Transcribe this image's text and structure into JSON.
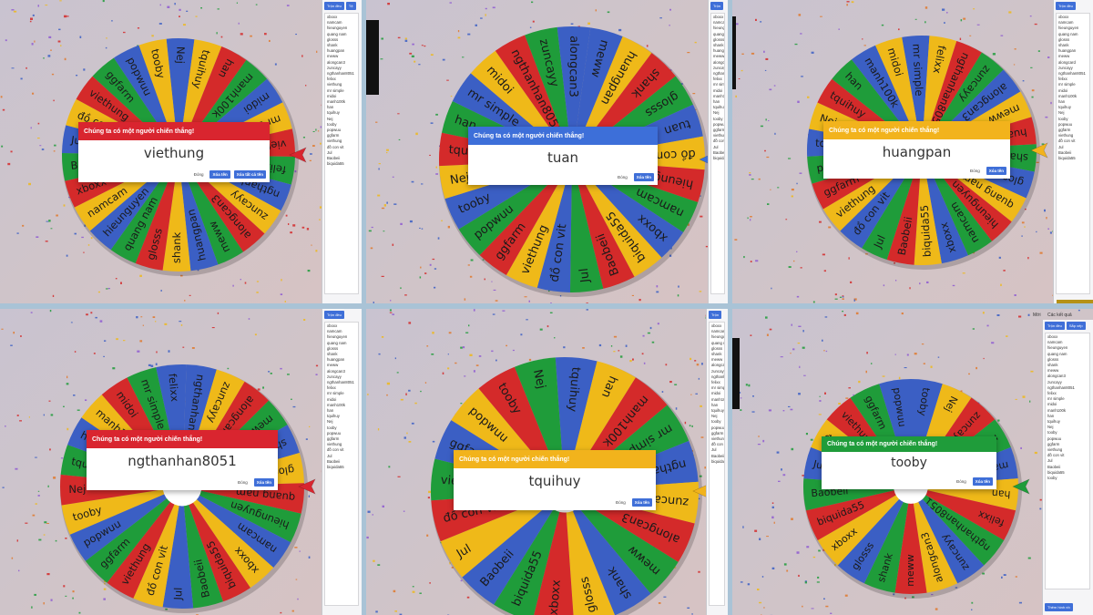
{
  "colors": {
    "red": "#d42a2a",
    "blue": "#3b5fc4",
    "yellow": "#efb919",
    "green": "#1f9c3a",
    "dialog_button": "#3f6fd8",
    "pointer": "#c0392b"
  },
  "panels": [
    {
      "header_color": "#d9252f",
      "dialog": {
        "title": "Chúng ta có một người chiến thắng!",
        "winner": "viethung",
        "close_label": "Đóng",
        "remove_label": "Xóa tên",
        "remove_all_label": "Xóa tất cả tên"
      },
      "sidebar": {
        "button1": "Trộn đều",
        "button2": "Tệ",
        "entries": [
          "xboxx",
          "namcam",
          "hieunguyen",
          "quang nam",
          "glosss",
          "shank",
          "huangpan",
          "meww",
          "alongcan3",
          "zuncayy",
          "ngthanhan8051",
          "felixx",
          "viethung",
          "mr simple",
          "midoi",
          "manh100k",
          "han",
          "tquihuy",
          "Nej",
          "tooby",
          "popwuu",
          "ggfarm",
          "viethung",
          "đồ con vit",
          "Jul",
          "Baobeii",
          "biquida55"
        ]
      },
      "wheel_labels": [
        "Nej",
        "tquihuy",
        "han",
        "manh100k",
        "midoi",
        "mr simple",
        "viethung",
        "felixx",
        "ngthanhan8051",
        "zuncayy",
        "alongcan3",
        "meww",
        "huangpan",
        "shank",
        "glosss",
        "quang nam",
        "hieunguyen",
        "namcam",
        "xboxx",
        "Baobeii",
        "Jul",
        "đồ con vit",
        "viethung",
        "ggfarm",
        "popwuu",
        "tooby"
      ]
    },
    {
      "header_color": "#3d6fd9",
      "dialog": {
        "title": "Chúng ta có một người chiến thắng!",
        "winner": "tuan",
        "close_label": "Đóng",
        "remove_label": "Xóa tên"
      },
      "sidebar": {
        "button1": "Trộn",
        "button2": "",
        "entries": [
          "xboxx",
          "namcam",
          "hieunguyen",
          "quang nam",
          "glosss",
          "shank",
          "huangpan",
          "meww",
          "alongcan3",
          "zuncayy",
          "ngthanhan8051",
          "felixx",
          "mr simple",
          "midoi",
          "manh100k",
          "han",
          "tquihuy",
          "Nej",
          "tooby",
          "popwuu",
          "ggfarm",
          "viethung",
          "đồ con vit",
          "Jul",
          "Baobeii",
          "biquida55"
        ]
      },
      "wheel_labels": [
        "meww",
        "huangpan",
        "shank",
        "glosss",
        "tuan",
        "đồ con vit",
        "hieunguyen",
        "namcam",
        "xboxx",
        "biquida55",
        "Baobeii",
        "Jul",
        "đồ con vit",
        "viethung",
        "ggfarm",
        "popwuu",
        "tooby",
        "Nej",
        "tquihuy",
        "han",
        "mr simple",
        "midoi",
        "ngthanhan8051",
        "zuncayy",
        "alongcan3"
      ]
    },
    {
      "header_color": "#f2b31c",
      "dialog": {
        "title": "Chúng ta có một người chiến thắng!",
        "winner": "huangpan",
        "close_label": "Đóng",
        "remove_label": "Xóa tên"
      },
      "sidebar": {
        "button1": "Trộn đều",
        "button2": "",
        "entries": [
          "xboxx",
          "namcam",
          "hieunguyen",
          "quang nam",
          "glosss",
          "shank",
          "huangpan",
          "meww",
          "alongcard",
          "zuncayy",
          "ngthanhan8051",
          "felixx",
          "mr simple",
          "midoi",
          "manh100k",
          "han",
          "tquihuy",
          "Nej",
          "tooby",
          "popwuu",
          "ggfarm",
          "viethung",
          "đồ con vit",
          "Jul",
          "Baobeii",
          "biquida55"
        ]
      },
      "wheel_labels": [
        "mr simple",
        "felixx",
        "ngthanhan8051",
        "zuncayy",
        "alongcan3",
        "meww",
        "huangpan",
        "shank",
        "glosss",
        "quang nam",
        "hieunguyen",
        "namcam",
        "xboxx",
        "biquida55",
        "Baobeii",
        "Jul",
        "đồ con vit",
        "viethung",
        "ggfarm",
        "popwuu",
        "tooby",
        "Nej",
        "tquihuy",
        "han",
        "manh100k",
        "midoi"
      ]
    },
    {
      "header_color": "#d9252f",
      "dialog": {
        "title": "Chúng ta có một người chiến thắng!",
        "winner": "ngthanhan8051",
        "close_label": "Đóng",
        "remove_label": "Xóa tên"
      },
      "sidebar": {
        "button1": "Trộn đều",
        "button2": "",
        "entries": [
          "xboxx",
          "namcam",
          "hieunguyen",
          "quang nam",
          "glosss",
          "shank",
          "huangpan",
          "meww",
          "alongcan3",
          "zuncayy",
          "ngthanhan8051",
          "felixx",
          "mr simple",
          "midoi",
          "manh100k",
          "han",
          "tquihuy",
          "Nej",
          "tooby",
          "popwuu",
          "ggfarm",
          "viethung",
          "đồ con vit",
          "Jul",
          "Baobeii",
          "biquida55"
        ]
      },
      "wheel_labels": [
        "ngthanhan8051",
        "zuncayy",
        "alongcan3",
        "meww",
        "shank",
        "glosss",
        "quang nam",
        "hieunguyen",
        "namcam",
        "xboxx",
        "biquida55",
        "Baobeii",
        "Jul",
        "đồ con vit",
        "viethung",
        "ggfarm",
        "popwuu",
        "tooby",
        "Nej",
        "tquihuy",
        "han",
        "manh100k",
        "midoi",
        "mr simple",
        "felixx"
      ]
    },
    {
      "header_color": "#f2b31c",
      "dialog": {
        "title": "Chúng ta có một người chiến thắng!",
        "winner": "tquihuy",
        "close_label": "Đóng",
        "remove_label": "Xóa tên"
      },
      "sidebar": {
        "button1": "Trộn",
        "button2": "",
        "entries": [
          "xboxx",
          "namcam",
          "hieunguyen",
          "quang nam",
          "glosss",
          "shank",
          "meww",
          "alongcan3",
          "zuncayy",
          "ngthanhan8051",
          "felixx",
          "mr simple",
          "midoi",
          "manh100k",
          "han",
          "tquihuy",
          "Nej",
          "tooby",
          "popwuu",
          "ggfarm",
          "viethung",
          "đồ con vit",
          "Jul",
          "Baobeii",
          "biquida55"
        ]
      },
      "wheel_labels": [
        "tquihuy",
        "han",
        "manh100k",
        "mr simple",
        "ngthanhan8051",
        "zuncayy",
        "alongcan3",
        "meww",
        "shank",
        "glosss",
        "xboxx",
        "biquida55",
        "Baobeii",
        "Jul",
        "đồ con vit",
        "viethung",
        "ggfarm",
        "popwuu",
        "tooby",
        "Nej"
      ]
    },
    {
      "header_color": "#1f9c3a",
      "dialog": {
        "title": "Chúng ta có một người chiến thắng!",
        "winner": "tooby",
        "close_label": "Đóng",
        "remove_label": "Xóa tên"
      },
      "top_labels": {
        "left": "Mới",
        "right": "Các kết quả"
      },
      "sidebar": {
        "button1": "Trộn đều",
        "button2": "Sắp xếp",
        "bottom_button": "Thêm hình nh",
        "entries": [
          "xboxx",
          "namcam",
          "hieunguyen",
          "quang nam",
          "glosss",
          "shank",
          "meww",
          "alongcan3",
          "zuncayy",
          "ngthanhan8051",
          "felixx",
          "mr simple",
          "midoi",
          "manh100k",
          "han",
          "tquihuy",
          "Nej",
          "tooby",
          "popwuu",
          "ggfarm",
          "viethung",
          "đồ con vit",
          "Jul",
          "Baobeii",
          "biquida55",
          "tooby"
        ]
      },
      "wheel_labels": [
        "tooby",
        "Nej",
        "zuncayy",
        "mr simple",
        "manh100k",
        "han",
        "felixx",
        "ngthanhan8051",
        "zuncayy",
        "alongcan3",
        "meww",
        "shank",
        "glosss",
        "xboxx",
        "biquida55",
        "Baobeii",
        "Jul",
        "đồ con vit",
        "viethung",
        "ggfarm",
        "popwuu"
      ]
    }
  ]
}
